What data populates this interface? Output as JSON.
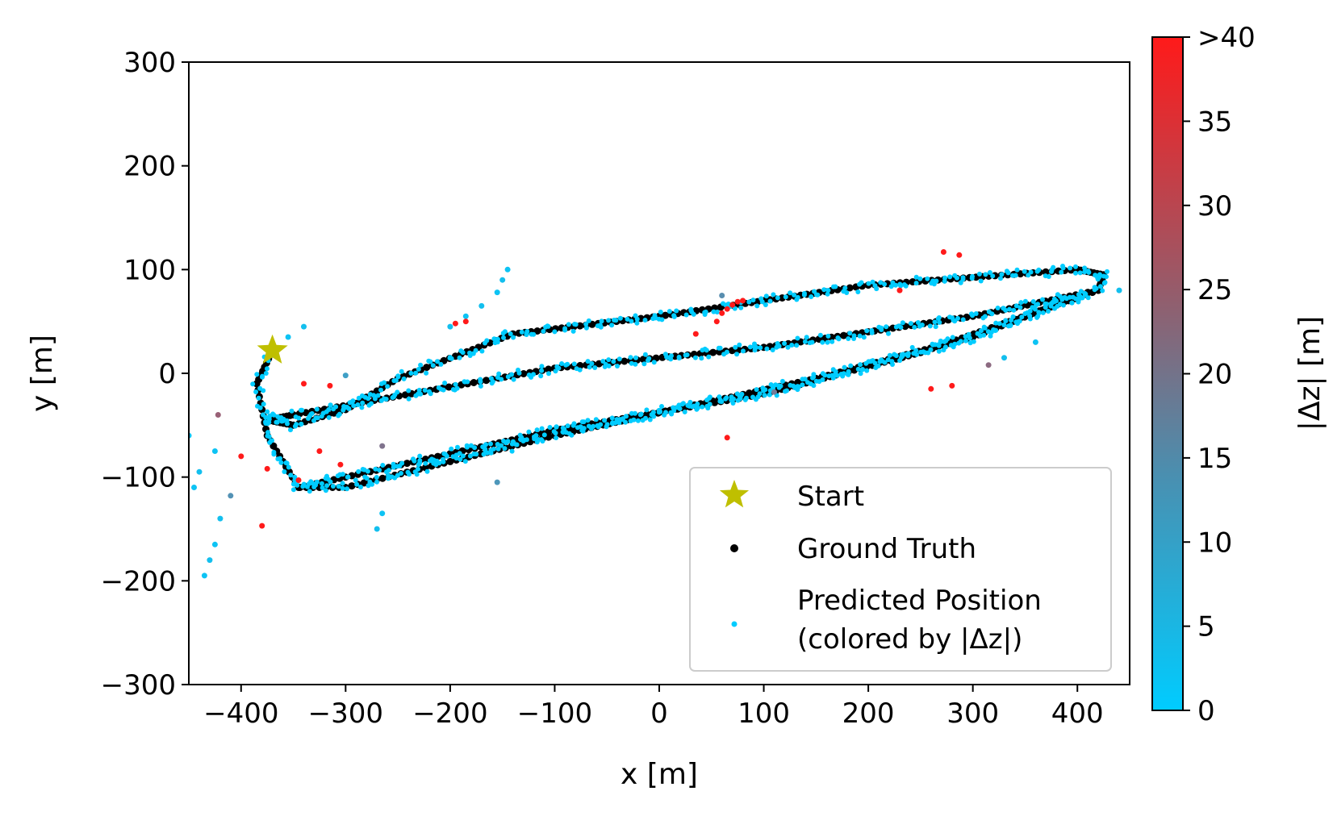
{
  "chart_data": {
    "type": "scatter",
    "xlabel": "x [m]",
    "ylabel": "y [m]",
    "xlim": [
      -450,
      450
    ],
    "ylim": [
      -300,
      300
    ],
    "xticks": [
      -400,
      -300,
      -200,
      -100,
      0,
      100,
      200,
      300,
      400
    ],
    "xtick_labels": [
      "−400",
      "−300",
      "−200",
      "−100",
      "0",
      "100",
      "200",
      "300",
      "400"
    ],
    "yticks": [
      -300,
      -200,
      -100,
      0,
      100,
      200,
      300
    ],
    "ytick_labels": [
      "−300",
      "−200",
      "−100",
      "0",
      "100",
      "200",
      "300"
    ],
    "grid": false,
    "legend_position": "lower-right",
    "colorbar": {
      "label": "|Δz| [m]",
      "min": 0,
      "max": 40,
      "ticks": [
        0,
        5,
        10,
        15,
        20,
        25,
        30,
        35,
        40
      ],
      "tick_labels": [
        "0",
        "5",
        "10",
        "15",
        "20",
        "25",
        "30",
        "35",
        ">40"
      ],
      "color_low": "#00ccff",
      "color_high": "#ff1a1a"
    },
    "series": [
      {
        "name": "Start",
        "marker": "star",
        "color": "#bfbf00",
        "points": [
          [
            -370,
            22
          ]
        ]
      },
      {
        "name": "Ground Truth",
        "marker": "dot",
        "color": "#000000",
        "path": [
          [
            -370,
            22
          ],
          [
            -385,
            -10
          ],
          [
            -375,
            -60
          ],
          [
            -345,
            -110
          ],
          [
            -300,
            -100
          ],
          [
            -100,
            -55
          ],
          [
            100,
            -20
          ],
          [
            250,
            20
          ],
          [
            420,
            80
          ],
          [
            425,
            95
          ],
          [
            400,
            100
          ],
          [
            200,
            85
          ],
          [
            0,
            55
          ],
          [
            -140,
            38
          ],
          [
            -250,
            -5
          ],
          [
            -300,
            -35
          ],
          [
            -350,
            -50
          ],
          [
            -375,
            -45
          ],
          [
            -350,
            -40
          ],
          [
            -100,
            5
          ],
          [
            100,
            25
          ],
          [
            300,
            55
          ],
          [
            410,
            78
          ],
          [
            300,
            35
          ],
          [
            150,
            -5
          ],
          [
            -100,
            -60
          ],
          [
            -300,
            -110
          ],
          [
            -350,
            -110
          ]
        ]
      },
      {
        "name": "Predicted Position\n(colored by |Δz|)",
        "marker": "dot",
        "color": "#00ccff",
        "path": [
          [
            -370,
            22
          ],
          [
            -385,
            -10
          ],
          [
            -375,
            -60
          ],
          [
            -345,
            -110
          ],
          [
            -300,
            -100
          ],
          [
            -100,
            -55
          ],
          [
            100,
            -20
          ],
          [
            250,
            20
          ],
          [
            420,
            80
          ],
          [
            425,
            95
          ],
          [
            400,
            100
          ],
          [
            200,
            85
          ],
          [
            0,
            55
          ],
          [
            -140,
            38
          ],
          [
            -250,
            -5
          ],
          [
            -300,
            -35
          ],
          [
            -350,
            -50
          ],
          [
            -375,
            -45
          ],
          [
            -350,
            -40
          ],
          [
            -100,
            5
          ],
          [
            100,
            25
          ],
          [
            300,
            55
          ],
          [
            410,
            78
          ],
          [
            300,
            35
          ],
          [
            150,
            -5
          ],
          [
            -100,
            -60
          ],
          [
            -300,
            -110
          ],
          [
            -350,
            -110
          ]
        ],
        "outliers": [
          {
            "x": -200,
            "y": 45,
            "dz": 3
          },
          {
            "x": -185,
            "y": 55,
            "dz": 2
          },
          {
            "x": -170,
            "y": 65,
            "dz": 3
          },
          {
            "x": -155,
            "y": 78,
            "dz": 2
          },
          {
            "x": -150,
            "y": 90,
            "dz": 3
          },
          {
            "x": -145,
            "y": 100,
            "dz": 2
          },
          {
            "x": -420,
            "y": -140,
            "dz": 3
          },
          {
            "x": -425,
            "y": -165,
            "dz": 2
          },
          {
            "x": -430,
            "y": -180,
            "dz": 3
          },
          {
            "x": -435,
            "y": -195,
            "dz": 2
          },
          {
            "x": -440,
            "y": -95,
            "dz": 3
          },
          {
            "x": -445,
            "y": -110,
            "dz": 2
          },
          {
            "x": -450,
            "y": -60,
            "dz": 2
          },
          {
            "x": -425,
            "y": -75,
            "dz": 2
          },
          {
            "x": -340,
            "y": 45,
            "dz": 3
          },
          {
            "x": -355,
            "y": 35,
            "dz": 2
          },
          {
            "x": -270,
            "y": -150,
            "dz": 3
          },
          {
            "x": -265,
            "y": -135,
            "dz": 2
          },
          {
            "x": 440,
            "y": 80,
            "dz": 3
          },
          {
            "x": 360,
            "y": 30,
            "dz": 2
          },
          {
            "x": 330,
            "y": 15,
            "dz": 3
          },
          {
            "x": -195,
            "y": 48,
            "dz": 45
          },
          {
            "x": -185,
            "y": 50,
            "dz": 45
          },
          {
            "x": 60,
            "y": 58,
            "dz": 45
          },
          {
            "x": 65,
            "y": 62,
            "dz": 45
          },
          {
            "x": 70,
            "y": 66,
            "dz": 45
          },
          {
            "x": 75,
            "y": 69,
            "dz": 45
          },
          {
            "x": 80,
            "y": 70,
            "dz": 45
          },
          {
            "x": 55,
            "y": 50,
            "dz": 45
          },
          {
            "x": 35,
            "y": 38,
            "dz": 45
          },
          {
            "x": 230,
            "y": 80,
            "dz": 45
          },
          {
            "x": 272,
            "y": 117,
            "dz": 45
          },
          {
            "x": 287,
            "y": 114,
            "dz": 45
          },
          {
            "x": 260,
            "y": -15,
            "dz": 45
          },
          {
            "x": 280,
            "y": -12,
            "dz": 45
          },
          {
            "x": 65,
            "y": -62,
            "dz": 45
          },
          {
            "x": -315,
            "y": -12,
            "dz": 45
          },
          {
            "x": -340,
            "y": -10,
            "dz": 45
          },
          {
            "x": -325,
            "y": -75,
            "dz": 45
          },
          {
            "x": -305,
            "y": -88,
            "dz": 45
          },
          {
            "x": -375,
            "y": -92,
            "dz": 45
          },
          {
            "x": -400,
            "y": -80,
            "dz": 45
          },
          {
            "x": -380,
            "y": -147,
            "dz": 45
          },
          {
            "x": -345,
            "y": -103,
            "dz": 45
          },
          {
            "x": -422,
            "y": -40,
            "dz": 24
          },
          {
            "x": -410,
            "y": -118,
            "dz": 13
          },
          {
            "x": -265,
            "y": -70,
            "dz": 20
          },
          {
            "x": -155,
            "y": -105,
            "dz": 12
          },
          {
            "x": 315,
            "y": 8,
            "dz": 22
          },
          {
            "x": 110,
            "y": -18,
            "dz": 18
          },
          {
            "x": 60,
            "y": 75,
            "dz": 14
          },
          {
            "x": -300,
            "y": -2,
            "dz": 10
          }
        ]
      }
    ]
  }
}
